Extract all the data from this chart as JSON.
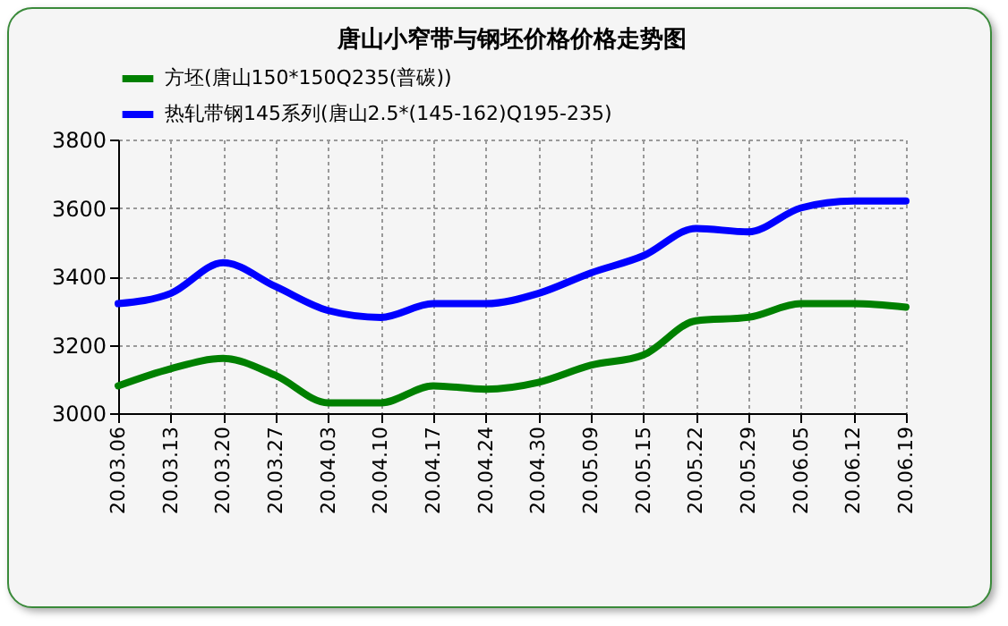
{
  "chart_data": {
    "type": "line",
    "title": "唐山小窄带与钢坯价格价格走势图",
    "categories": [
      "20.03.06",
      "20.03.13",
      "20.03.20",
      "20.03.27",
      "20.04.03",
      "20.04.10",
      "20.04.17",
      "20.04.24",
      "20.04.30",
      "20.05.09",
      "20.05.15",
      "20.05.22",
      "20.05.29",
      "20.06.05",
      "20.06.12",
      "20.06.19"
    ],
    "series": [
      {
        "name": "方坯(唐山150*150Q235(普碳))",
        "color": "#008000",
        "values": [
          3080,
          3130,
          3160,
          3110,
          3030,
          3030,
          3080,
          3070,
          3090,
          3140,
          3170,
          3270,
          3280,
          3320,
          3320,
          3310
        ]
      },
      {
        "name": "热轧带钢145系列(唐山2.5*(145-162)Q195-235)",
        "color": "#0000ff",
        "values": [
          3320,
          3350,
          3440,
          3370,
          3300,
          3280,
          3320,
          3320,
          3350,
          3410,
          3460,
          3540,
          3530,
          3600,
          3620,
          3620
        ]
      }
    ],
    "ylim": [
      3000,
      3800
    ],
    "yticks": [
      3000,
      3200,
      3400,
      3600,
      3800
    ],
    "grid": true,
    "legend": "top",
    "marker": "none",
    "line_style": "solid"
  }
}
